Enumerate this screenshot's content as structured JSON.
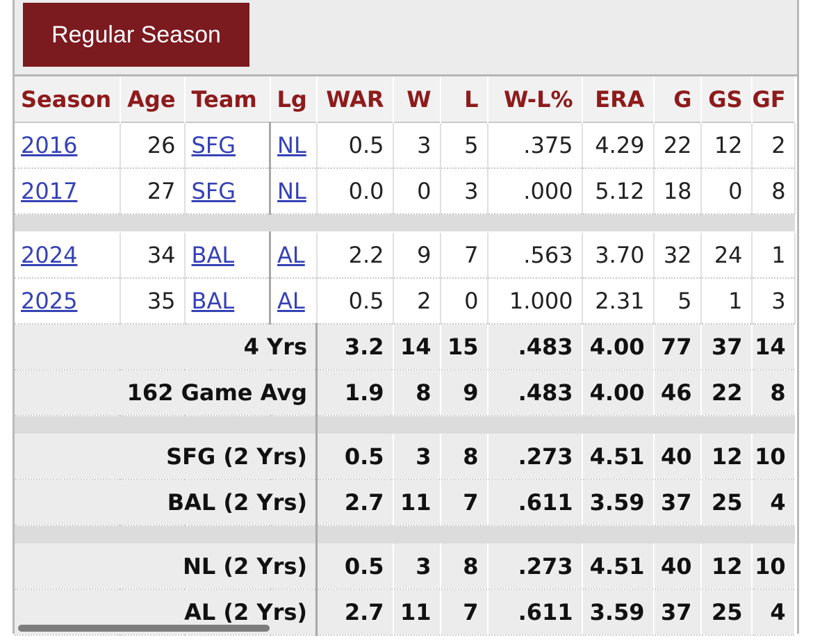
{
  "tab": {
    "label": "Regular Season"
  },
  "columns": [
    "Season",
    "Age",
    "Team",
    "Lg",
    "WAR",
    "W",
    "L",
    "W-L%",
    "ERA",
    "G",
    "GS",
    "GF"
  ],
  "rows_group1": [
    {
      "season": "2016",
      "age": "26",
      "team": "SFG",
      "lg": "NL",
      "war": "0.5",
      "w": "3",
      "l": "5",
      "wlpct": ".375",
      "era": "4.29",
      "g": "22",
      "gs": "12",
      "gf": "2"
    },
    {
      "season": "2017",
      "age": "27",
      "team": "SFG",
      "lg": "NL",
      "war": "0.0",
      "w": "0",
      "l": "3",
      "wlpct": ".000",
      "era": "5.12",
      "g": "18",
      "gs": "0",
      "gf": "8"
    }
  ],
  "rows_group2": [
    {
      "season": "2024",
      "age": "34",
      "team": "BAL",
      "lg": "AL",
      "war": "2.2",
      "w": "9",
      "l": "7",
      "wlpct": ".563",
      "era": "3.70",
      "g": "32",
      "gs": "24",
      "gf": "1"
    },
    {
      "season": "2025",
      "age": "35",
      "team": "BAL",
      "lg": "AL",
      "war": "0.5",
      "w": "2",
      "l": "0",
      "wlpct": "1.000",
      "era": "2.31",
      "g": "5",
      "gs": "1",
      "gf": "3"
    }
  ],
  "totals": [
    {
      "label": "4 Yrs",
      "war": "3.2",
      "w": "14",
      "l": "15",
      "wlpct": ".483",
      "era": "4.00",
      "g": "77",
      "gs": "37",
      "gf": "14"
    },
    {
      "label": "162 Game Avg",
      "war": "1.9",
      "w": "8",
      "l": "9",
      "wlpct": ".483",
      "era": "4.00",
      "g": "46",
      "gs": "22",
      "gf": "8"
    }
  ],
  "team_totals": [
    {
      "label": "SFG (2 Yrs)",
      "war": "0.5",
      "w": "3",
      "l": "8",
      "wlpct": ".273",
      "era": "4.51",
      "g": "40",
      "gs": "12",
      "gf": "10"
    },
    {
      "label": "BAL (2 Yrs)",
      "war": "2.7",
      "w": "11",
      "l": "7",
      "wlpct": ".611",
      "era": "3.59",
      "g": "37",
      "gs": "25",
      "gf": "4"
    }
  ],
  "league_totals": [
    {
      "label": "NL (2 Yrs)",
      "war": "0.5",
      "w": "3",
      "l": "8",
      "wlpct": ".273",
      "era": "4.51",
      "g": "40",
      "gs": "12",
      "gf": "10"
    },
    {
      "label": "AL (2 Yrs)",
      "war": "2.7",
      "w": "11",
      "l": "7",
      "wlpct": ".611",
      "era": "3.59",
      "g": "37",
      "gs": "25",
      "gf": "4"
    }
  ]
}
